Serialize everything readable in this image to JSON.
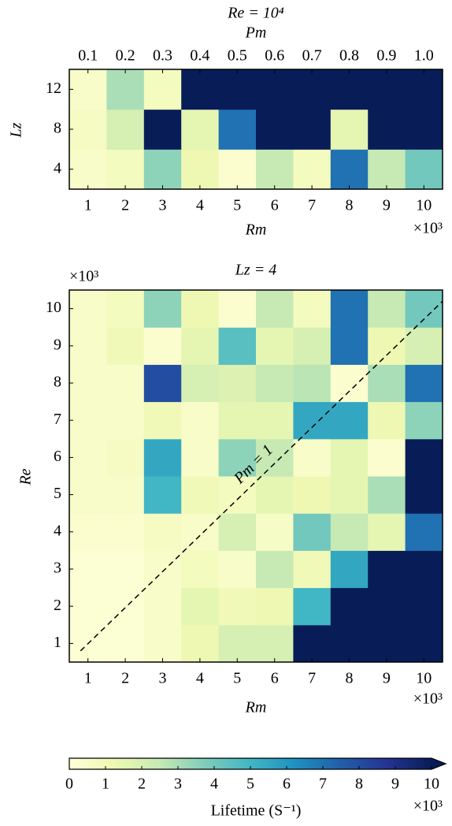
{
  "chart_data": [
    {
      "type": "heatmap",
      "title": "Re = 10⁴",
      "top_axis_label": "Pm",
      "top_categories": [
        "0.1",
        "0.2",
        "0.3",
        "0.4",
        "0.5",
        "0.6",
        "0.7",
        "0.8",
        "0.9",
        "1.0"
      ],
      "x_label": "Rm",
      "x_offset": "×10³",
      "y_label": "Lz",
      "x": [
        1,
        2,
        3,
        4,
        5,
        6,
        7,
        8,
        9,
        10
      ],
      "y": [
        4,
        8,
        12
      ],
      "z": [
        [
          0.5,
          0.8,
          3.5,
          1.2,
          0.3,
          2.5,
          0.8,
          7,
          2.5,
          4
        ],
        [
          0.7,
          2,
          10,
          1.5,
          7,
          10,
          10,
          1.5,
          10,
          10
        ],
        [
          0.5,
          3,
          0.8,
          10,
          10,
          10,
          10,
          10,
          10,
          10
        ]
      ]
    },
    {
      "type": "heatmap",
      "title": "Lz = 4",
      "y_offset": "×10³",
      "x_label": "Rm",
      "x_offset": "×10³",
      "y_label": "Re",
      "annotation": "Pm = 1",
      "x": [
        1,
        2,
        3,
        4,
        5,
        6,
        7,
        8,
        9,
        10
      ],
      "y": [
        1,
        2,
        3,
        4,
        5,
        6,
        7,
        8,
        9,
        10
      ],
      "z": [
        [
          0.2,
          0.2,
          0.5,
          1.2,
          2,
          2,
          10,
          10,
          10,
          10
        ],
        [
          0.2,
          0.2,
          0.5,
          1.5,
          1,
          1.2,
          5,
          10,
          10,
          10
        ],
        [
          0.2,
          0.2,
          0.5,
          0.8,
          0.5,
          2.5,
          1,
          5.5,
          10,
          10
        ],
        [
          0.3,
          0.3,
          0.7,
          0.5,
          2,
          0.6,
          4,
          2.5,
          1.5,
          7
        ],
        [
          0.5,
          0.5,
          5,
          1,
          0.8,
          1.5,
          1.2,
          1.5,
          3,
          10
        ],
        [
          0.5,
          0.7,
          5.5,
          0.5,
          3.5,
          2.5,
          0.5,
          1.5,
          0.3,
          10
        ],
        [
          0.5,
          0.5,
          1,
          0.5,
          1.5,
          1.5,
          5.5,
          5.5,
          1.2,
          3.5
        ],
        [
          0.5,
          0.5,
          8,
          2,
          1.8,
          2.5,
          2.7,
          0.3,
          3,
          7
        ],
        [
          0.5,
          1,
          0.3,
          1.5,
          4.5,
          1.5,
          2,
          7,
          1.2,
          2
        ],
        [
          0.5,
          0.8,
          3.5,
          1.2,
          0.3,
          2.5,
          0.8,
          7,
          2.5,
          4
        ]
      ]
    }
  ],
  "colorbar": {
    "label": "Lifetime (S⁻¹)",
    "offset": "×10³",
    "lim": [
      0,
      10
    ],
    "ticks": [
      0,
      1,
      2,
      3,
      4,
      5,
      6,
      7,
      8,
      9,
      10
    ],
    "extend": "max",
    "colormap": [
      "#ffffd9",
      "#edf8b1",
      "#c7e9b4",
      "#7fcdbb",
      "#41b6c4",
      "#1d91c0",
      "#225ea8",
      "#253494",
      "#081d58"
    ]
  }
}
